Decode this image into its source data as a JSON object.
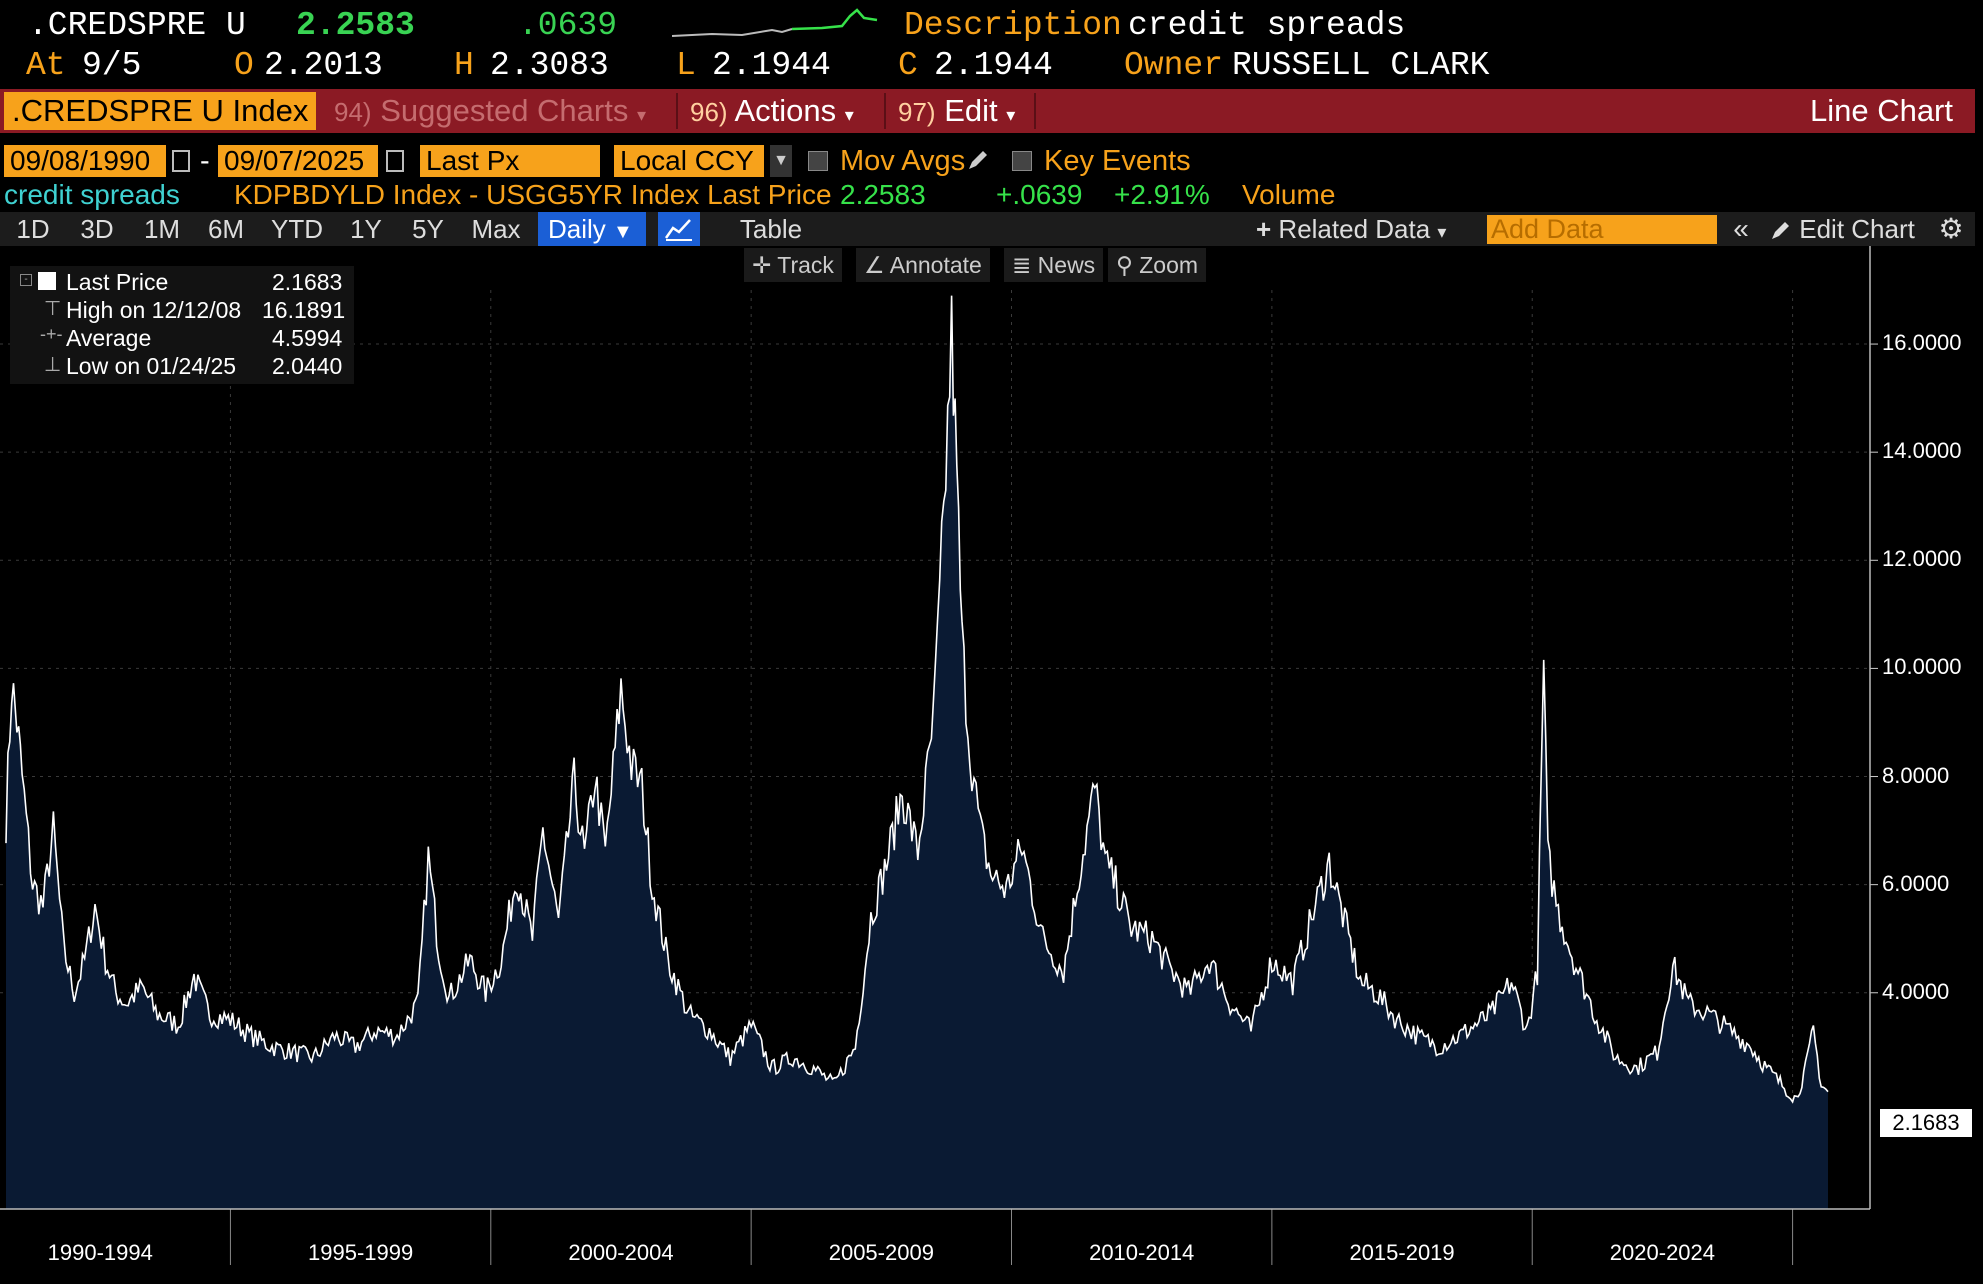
{
  "quote": {
    "ticker": ".CREDSPRE U",
    "last": "2.2583",
    "change": ".0639",
    "description_label": "Description",
    "description": "credit spreads",
    "at_label": "At",
    "at_date": "9/5",
    "open_label": "O",
    "open": "2.2013",
    "high_label": "H",
    "high": "2.3083",
    "low_label": "L",
    "low": "2.1944",
    "close_label": "C",
    "close": "2.1944",
    "owner_label": "Owner",
    "owner": "RUSSELL CLARK"
  },
  "toolbar": {
    "title": ".CREDSPRE U Index",
    "suggested_num": "94)",
    "suggested": "Suggested Charts",
    "actions_num": "96)",
    "actions": "Actions",
    "edit_num": "97)",
    "edit": "Edit",
    "chart_type": "Line Chart"
  },
  "params": {
    "start_date": "09/08/1990",
    "end_date": "09/07/2025",
    "field": "Last Px",
    "currency": "Local CCY",
    "mov_avgs": "Mov Avgs",
    "key_events": "Key Events"
  },
  "info": {
    "series_name": "credit spreads",
    "formula": "KDPBDYLD Index - USGG5YR Index Last Price",
    "value": "2.2583",
    "change": "+.0639",
    "pct": "+2.91%",
    "volume": "Volume"
  },
  "periods": [
    "1D",
    "3D",
    "1M",
    "6M",
    "YTD",
    "1Y",
    "5Y",
    "Max"
  ],
  "frequency": "Daily",
  "table_label": "Table",
  "related_data": "Related Data",
  "add_data_placeholder": "Add Data",
  "edit_chart": "Edit Chart",
  "tools": {
    "track": "Track",
    "annotate": "Annotate",
    "news": "News",
    "zoom": "Zoom"
  },
  "legend": {
    "last_label": "Last Price",
    "last_value": "2.1683",
    "high_label": "High on 12/12/08",
    "high_value": "16.1891",
    "avg_label": "Average",
    "avg_value": "4.5994",
    "low_label": "Low on 01/24/25",
    "low_value": "2.0440"
  },
  "last_marker": "2.1683",
  "colors": {
    "accent": "#f7a21b",
    "toolbar": "#8b1a24",
    "area_fill": "#0a1a33",
    "line": "#ffffff",
    "up": "#39d353"
  },
  "chart_data": {
    "type": "area",
    "ylim": [
      0,
      17
    ],
    "yticks": [
      "16.0000",
      "14.0000",
      "12.0000",
      "10.0000",
      "8.0000",
      "6.0000",
      "4.0000"
    ],
    "ytick_values": [
      16,
      14,
      12,
      10,
      8,
      6,
      4
    ],
    "xticks": [
      "1990-1994",
      "1995-1999",
      "2000-2004",
      "2005-2009",
      "2010-2014",
      "2015-2019",
      "2020-2024"
    ],
    "xtick_years": [
      1992.5,
      1997.5,
      2002.5,
      2007.5,
      2012.5,
      2017.5,
      2022.5
    ],
    "xlim": [
      1990.69,
      2025.68
    ],
    "series": [
      {
        "x": [
          1990.69,
          1990.8,
          1990.9,
          1991.0,
          1991.2,
          1991.4,
          1991.6,
          1991.8,
          1992.0,
          1992.2,
          1992.4,
          1992.6,
          1992.8,
          1993.0,
          1993.3,
          1993.6,
          1994.0,
          1994.3,
          1994.6,
          1995.0,
          1995.4,
          1995.8,
          1996.2,
          1996.6,
          1997.0,
          1997.4,
          1997.8,
          1998.2,
          1998.6,
          1998.8,
          1999.0,
          1999.2,
          1999.6,
          1999.9,
          2000.2,
          2000.5,
          2000.8,
          2001.0,
          2001.3,
          2001.6,
          2001.8,
          2002.0,
          2002.2,
          2002.5,
          2002.7,
          2002.9,
          2003.1,
          2003.4,
          2003.8,
          2004.2,
          2004.6,
          2005.0,
          2005.4,
          2005.8,
          2006.2,
          2006.6,
          2007.0,
          2007.3,
          2007.6,
          2007.9,
          2008.2,
          2008.5,
          2008.7,
          2008.85,
          2008.95,
          2009.05,
          2009.2,
          2009.4,
          2009.6,
          2009.9,
          2010.2,
          2010.6,
          2011.0,
          2011.3,
          2011.6,
          2011.8,
          2012.0,
          2012.3,
          2012.7,
          2013.0,
          2013.4,
          2013.8,
          2014.2,
          2014.6,
          2015.0,
          2015.4,
          2015.8,
          2016.1,
          2016.4,
          2016.7,
          2017.0,
          2017.4,
          2017.8,
          2018.2,
          2018.6,
          2018.9,
          2019.2,
          2019.6,
          2019.9,
          2020.1,
          2020.22,
          2020.3,
          2020.5,
          2020.8,
          2021.2,
          2021.6,
          2022.0,
          2022.4,
          2022.7,
          2023.0,
          2023.4,
          2023.8,
          2024.2,
          2024.5,
          2024.8,
          2025.0,
          2025.07,
          2025.25,
          2025.4,
          2025.55,
          2025.68
        ],
        "y": [
          7.2,
          9.7,
          9.0,
          8.0,
          6.0,
          5.6,
          7.0,
          4.8,
          4.0,
          4.6,
          5.6,
          4.6,
          4.0,
          3.8,
          4.1,
          3.6,
          3.4,
          4.3,
          3.6,
          3.5,
          3.2,
          3.0,
          2.9,
          2.8,
          3.2,
          3.0,
          3.3,
          3.2,
          3.8,
          6.5,
          4.8,
          3.9,
          4.6,
          4.0,
          4.6,
          6.2,
          5.0,
          7.0,
          5.3,
          7.9,
          6.5,
          8.0,
          6.6,
          9.6,
          8.2,
          7.8,
          6.0,
          4.6,
          3.6,
          3.3,
          2.8,
          3.4,
          2.6,
          2.8,
          2.6,
          2.3,
          3.0,
          5.4,
          6.4,
          7.7,
          6.6,
          9.0,
          12.8,
          16.19,
          13.5,
          10.5,
          8.5,
          7.0,
          6.2,
          5.9,
          6.7,
          5.0,
          4.4,
          6.2,
          7.8,
          6.4,
          6.0,
          5.2,
          5.0,
          4.5,
          4.0,
          4.6,
          3.8,
          3.3,
          4.6,
          4.2,
          5.5,
          6.4,
          5.3,
          4.2,
          4.0,
          3.5,
          3.2,
          3.0,
          3.2,
          3.4,
          3.6,
          4.2,
          3.3,
          4.4,
          10.1,
          6.5,
          5.5,
          4.6,
          3.6,
          2.8,
          2.6,
          2.9,
          4.5,
          3.8,
          3.6,
          3.3,
          3.0,
          2.6,
          2.3,
          2.1,
          2.044,
          2.6,
          3.3,
          2.3,
          2.17
        ]
      }
    ]
  }
}
